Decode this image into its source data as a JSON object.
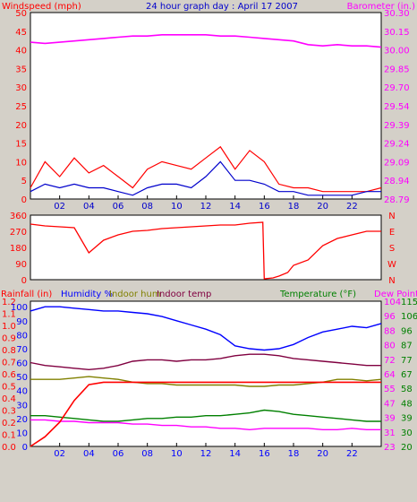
{
  "header": {
    "title": "24 hour graph day : April 17 2007",
    "left_label": "Windspeed (mph)",
    "right_label": "Barometer (in.)"
  },
  "colors": {
    "background": "#d4d0c8",
    "plot_background": "#ffffff",
    "windspeed": "#ff0000",
    "wind_avg": "#0000cc",
    "barometer": "#ff00ff",
    "direction": "#ff0000",
    "rain": "#ff0000",
    "humidity": "#0000ff",
    "indoor_hum": "#808000",
    "indoor_temp": "#800040",
    "temperature": "#008000",
    "dew_point": "#ff00ff"
  },
  "chart_data": [
    {
      "id": "wind_baro",
      "type": "line",
      "x": [
        0,
        1,
        2,
        3,
        4,
        5,
        6,
        7,
        8,
        9,
        10,
        11,
        12,
        13,
        14,
        15,
        16,
        17,
        18,
        19,
        20,
        21,
        22,
        23,
        24
      ],
      "x_ticks": [
        "02",
        "04",
        "06",
        "08",
        "10",
        "12",
        "14",
        "16",
        "18",
        "20",
        "22"
      ],
      "left_axis": {
        "label": "Windspeed (mph)",
        "ylim": [
          0,
          50
        ],
        "ticks": [
          "0",
          "5",
          "10",
          "15",
          "20",
          "25",
          "30",
          "35",
          "40",
          "45",
          "50"
        ]
      },
      "right_axis": {
        "label": "Barometer (in.)",
        "ylim": [
          28.79,
          30.3
        ],
        "ticks": [
          "28.79",
          "28.94",
          "29.09",
          "29.24",
          "29.39",
          "29.54",
          "29.70",
          "29.85",
          "30.00",
          "30.15",
          "30.30"
        ]
      },
      "series": [
        {
          "key": "gust",
          "axis": "left",
          "values": [
            3,
            10,
            6,
            11,
            7,
            9,
            6,
            3,
            8,
            10,
            9,
            8,
            11,
            14,
            8,
            13,
            10,
            4,
            3,
            3,
            2,
            2,
            2,
            2,
            3
          ]
        },
        {
          "key": "avg",
          "axis": "left",
          "values": [
            2,
            4,
            3,
            4,
            3,
            3,
            2,
            1,
            3,
            4,
            4,
            3,
            6,
            10,
            5,
            5,
            4,
            2,
            2,
            1,
            1,
            1,
            1,
            2,
            2
          ]
        },
        {
          "key": "baro",
          "axis": "right",
          "values": [
            30.06,
            30.05,
            30.06,
            30.07,
            30.08,
            30.09,
            30.1,
            30.11,
            30.11,
            30.12,
            30.12,
            30.12,
            30.12,
            30.11,
            30.11,
            30.1,
            30.09,
            30.08,
            30.07,
            30.04,
            30.03,
            30.04,
            30.03,
            30.03,
            30.02
          ]
        }
      ]
    },
    {
      "id": "direction",
      "type": "line",
      "x": [
        0,
        1,
        2,
        3,
        4,
        5,
        6,
        7,
        8,
        9,
        10,
        11,
        12,
        13,
        14,
        15,
        15.9,
        16,
        16.6,
        17,
        17.6,
        18,
        19,
        20,
        21,
        22,
        23,
        24
      ],
      "x_ticks": [],
      "left_axis": {
        "ylim": [
          0,
          360
        ],
        "ticks": [
          "0",
          "90",
          "180",
          "270",
          "360"
        ]
      },
      "right_axis": {
        "ticks": [
          "N",
          "E",
          "S",
          "W",
          "N"
        ]
      },
      "series": [
        {
          "key": "direction",
          "values": [
            310,
            300,
            295,
            290,
            150,
            220,
            250,
            270,
            275,
            285,
            290,
            295,
            300,
            305,
            305,
            315,
            320,
            5,
            10,
            20,
            40,
            80,
            110,
            190,
            230,
            250,
            270,
            270
          ]
        }
      ]
    },
    {
      "id": "rain_hum_temp",
      "type": "line",
      "x": [
        0,
        1,
        2,
        3,
        4,
        5,
        6,
        7,
        8,
        9,
        10,
        11,
        12,
        13,
        14,
        15,
        16,
        17,
        18,
        19,
        20,
        21,
        22,
        23,
        24
      ],
      "x_ticks": [
        "02",
        "04",
        "06",
        "08",
        "10",
        "12",
        "14",
        "16",
        "18",
        "20",
        "22"
      ],
      "top_labels": {
        "rainfall": "Rainfall (in)",
        "humidity": "Humidity %",
        "indoor_hum": "Indoor hum",
        "indoor_temp": "Indoor temp",
        "temperature": "Temperature (°F)",
        "dew_point": "Dew Point"
      },
      "left_axis_rain": {
        "ylim": [
          0,
          1.2
        ],
        "ticks": [
          "0.0",
          "0.1",
          "0.2",
          "0.3",
          "0.4",
          "0.5",
          "0.6",
          "0.7",
          "0.8",
          "0.9",
          "1.0",
          "1.1",
          "1.2"
        ]
      },
      "left_axis_hum": {
        "ylim": [
          0,
          104
        ],
        "ticks": [
          "0",
          "10",
          "20",
          "30",
          "40",
          "50",
          "60",
          "70",
          "80",
          "90",
          "100"
        ]
      },
      "right_axis_temp_a": {
        "ticks": [
          "23",
          "31",
          "39",
          "47",
          "55",
          "64",
          "72",
          "80",
          "88",
          "96",
          "104"
        ]
      },
      "right_axis_temp_b": {
        "ticks": [
          "20",
          "30",
          "39",
          "48",
          "58",
          "67",
          "77",
          "87",
          "96",
          "106",
          "115"
        ]
      },
      "series": [
        {
          "key": "humidity",
          "values": [
            97,
            100,
            100,
            99,
            98,
            97,
            97,
            96,
            95,
            93,
            90,
            87,
            84,
            80,
            72,
            70,
            69,
            70,
            73,
            78,
            82,
            84,
            86,
            85,
            88
          ]
        },
        {
          "key": "indoor_temp",
          "values": [
            60,
            58,
            57,
            56,
            55,
            56,
            58,
            61,
            62,
            62,
            61,
            62,
            62,
            63,
            65,
            66,
            66,
            65,
            63,
            62,
            61,
            60,
            59,
            58,
            58
          ]
        },
        {
          "key": "indoor_hum",
          "values": [
            48,
            48,
            48,
            49,
            50,
            49,
            48,
            46,
            45,
            45,
            44,
            44,
            44,
            44,
            44,
            43,
            43,
            44,
            44,
            45,
            46,
            48,
            48,
            47,
            48
          ]
        },
        {
          "key": "temperature",
          "values": [
            22,
            22,
            21,
            20,
            19,
            18,
            18,
            19,
            20,
            20,
            21,
            21,
            22,
            22,
            23,
            24,
            26,
            25,
            23,
            22,
            21,
            20,
            19,
            18,
            18
          ]
        },
        {
          "key": "dew_point",
          "values": [
            19,
            19,
            18,
            18,
            17,
            17,
            17,
            16,
            16,
            15,
            15,
            14,
            14,
            13,
            13,
            12,
            13,
            13,
            13,
            13,
            12,
            12,
            13,
            12,
            12
          ]
        },
        {
          "key": "rain",
          "values": [
            0.0,
            0.08,
            0.2,
            0.38,
            0.51,
            0.53,
            0.53,
            0.53,
            0.53,
            0.53,
            0.53,
            0.53,
            0.53,
            0.53,
            0.53,
            0.53,
            0.53,
            0.53,
            0.53,
            0.53,
            0.53,
            0.53,
            0.53,
            0.53,
            0.53
          ]
        }
      ]
    }
  ]
}
